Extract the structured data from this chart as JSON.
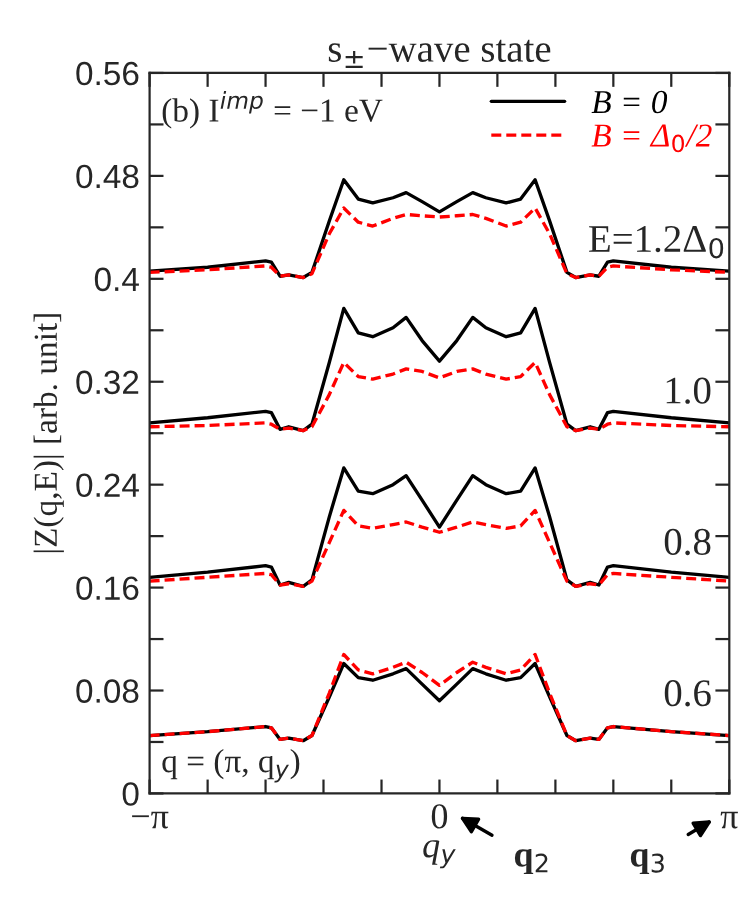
{
  "chart_data": {
    "type": "line",
    "title": "s$_{±}$−wave state",
    "xlabel": "q$_{y}$",
    "ylabel": "|Z(q,E)| [arb. unit]",
    "x": [
      -3.142,
      -2.513,
      -1.885,
      -1.822,
      -1.728,
      -1.634,
      -1.477,
      -1.382,
      -1.194,
      -1.037,
      -0.88,
      -0.723,
      -0.503,
      -0.361,
      -0.188,
      0,
      0.188,
      0.361,
      0.503,
      0.723,
      0.88,
      1.037,
      1.194,
      1.382,
      1.477,
      1.634,
      1.728,
      1.822,
      1.885,
      2.513,
      3.142
    ],
    "series": [
      {
        "name": "B = 0",
        "color": "#000000",
        "line_style": "solid",
        "values": [
          0.406,
          0.409,
          0.414,
          0.413,
          0.402,
          0.403,
          0.401,
          0.405,
          0.445,
          0.477,
          0.462,
          0.459,
          0.463,
          0.467,
          0.46,
          0.452,
          0.46,
          0.467,
          0.463,
          0.459,
          0.462,
          0.477,
          0.445,
          0.405,
          0.401,
          0.403,
          0.402,
          0.413,
          0.414,
          0.409,
          0.406
        ]
      },
      {
        "name": "B = Δ$_{0}$/2",
        "color": "#ff0000",
        "line_style": "dashed",
        "values": [
          0.405,
          0.407,
          0.41,
          0.409,
          0.402,
          0.403,
          0.401,
          0.404,
          0.435,
          0.455,
          0.444,
          0.441,
          0.447,
          0.45,
          0.449,
          0.448,
          0.449,
          0.45,
          0.447,
          0.441,
          0.444,
          0.455,
          0.435,
          0.404,
          0.401,
          0.403,
          0.402,
          0.409,
          0.41,
          0.407,
          0.405
        ]
      },
      {
        "color": "#000000",
        "line_style": "solid",
        "values": [
          0.288,
          0.292,
          0.297,
          0.296,
          0.283,
          0.285,
          0.282,
          0.287,
          0.335,
          0.377,
          0.358,
          0.355,
          0.362,
          0.37,
          0.352,
          0.336,
          0.352,
          0.37,
          0.362,
          0.355,
          0.358,
          0.377,
          0.335,
          0.287,
          0.282,
          0.285,
          0.283,
          0.296,
          0.297,
          0.292,
          0.288
        ]
      },
      {
        "color": "#ff0000",
        "line_style": "dashed",
        "values": [
          0.285,
          0.286,
          0.288,
          0.287,
          0.283,
          0.284,
          0.282,
          0.285,
          0.31,
          0.335,
          0.324,
          0.322,
          0.326,
          0.33,
          0.328,
          0.323,
          0.328,
          0.33,
          0.326,
          0.322,
          0.324,
          0.335,
          0.31,
          0.285,
          0.282,
          0.284,
          0.283,
          0.287,
          0.288,
          0.286,
          0.285
        ]
      },
      {
        "color": "#000000",
        "line_style": "solid",
        "values": [
          0.168,
          0.172,
          0.177,
          0.176,
          0.162,
          0.164,
          0.161,
          0.166,
          0.215,
          0.253,
          0.235,
          0.233,
          0.24,
          0.247,
          0.228,
          0.207,
          0.228,
          0.247,
          0.24,
          0.233,
          0.235,
          0.253,
          0.215,
          0.166,
          0.161,
          0.164,
          0.162,
          0.176,
          0.177,
          0.172,
          0.168
        ]
      },
      {
        "color": "#ff0000",
        "line_style": "dashed",
        "values": [
          0.165,
          0.168,
          0.171,
          0.17,
          0.162,
          0.163,
          0.161,
          0.165,
          0.195,
          0.22,
          0.208,
          0.206,
          0.209,
          0.211,
          0.207,
          0.203,
          0.207,
          0.211,
          0.209,
          0.206,
          0.208,
          0.22,
          0.195,
          0.165,
          0.161,
          0.163,
          0.162,
          0.17,
          0.171,
          0.168,
          0.165
        ]
      },
      {
        "color": "#000000",
        "line_style": "solid",
        "values": [
          0.045,
          0.048,
          0.052,
          0.051,
          0.042,
          0.043,
          0.041,
          0.045,
          0.075,
          0.101,
          0.09,
          0.088,
          0.093,
          0.097,
          0.085,
          0.072,
          0.085,
          0.097,
          0.093,
          0.088,
          0.09,
          0.101,
          0.075,
          0.045,
          0.041,
          0.043,
          0.042,
          0.051,
          0.052,
          0.048,
          0.045
        ]
      },
      {
        "color": "#ff0000",
        "line_style": "dashed",
        "values": [
          0.045,
          0.048,
          0.052,
          0.051,
          0.042,
          0.043,
          0.041,
          0.045,
          0.078,
          0.108,
          0.096,
          0.093,
          0.098,
          0.102,
          0.094,
          0.084,
          0.094,
          0.102,
          0.098,
          0.093,
          0.096,
          0.108,
          0.078,
          0.045,
          0.041,
          0.043,
          0.042,
          0.051,
          0.052,
          0.048,
          0.045
        ]
      }
    ],
    "xlim": [
      -3.142,
      3.142
    ],
    "xticks": [
      {
        "value": -3.142,
        "label": "−π"
      },
      {
        "value": -2.513,
        "label": null
      },
      {
        "value": -1.885,
        "label": null
      },
      {
        "value": -1.257,
        "label": null
      },
      {
        "value": -0.628,
        "label": null
      },
      {
        "value": 0,
        "label": "0"
      },
      {
        "value": 0.628,
        "label": null
      },
      {
        "value": 1.257,
        "label": null
      },
      {
        "value": 1.885,
        "label": null
      },
      {
        "value": 2.513,
        "label": null
      },
      {
        "value": 3.142,
        "label": "π"
      }
    ],
    "ylim": [
      0,
      0.56
    ],
    "yticks": [
      0,
      {
        "value": 0.04,
        "label": null
      },
      0.08,
      {
        "value": 0.12,
        "label": null
      },
      0.16,
      {
        "value": 0.2,
        "label": null
      },
      0.24,
      {
        "value": 0.28,
        "label": null
      },
      0.32,
      {
        "value": 0.36,
        "label": null
      },
      0.4,
      {
        "value": 0.44,
        "label": null
      },
      0.48,
      {
        "value": 0.52,
        "label": null
      },
      0.56
    ],
    "legend": "top right",
    "grid": false,
    "annotations": [
      "(b) I$^{imp}$ = −1 eV",
      "q = (π, q$_{y}$)",
      "E=1.2Δ$_{0}$",
      "1.0",
      "0.8",
      "0.6",
      "q$_{2}$",
      "q$_{3}$"
    ]
  }
}
